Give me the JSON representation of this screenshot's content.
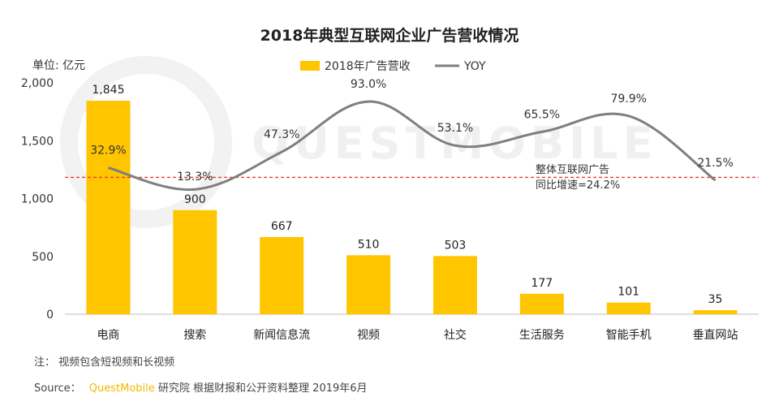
{
  "chart_data": {
    "type": "bar+line",
    "title": "2018年典型互联网企业广告营收情况",
    "unit_label": "单位: 亿元",
    "categories": [
      "电商",
      "搜索",
      "新闻信息流",
      "视频",
      "社交",
      "生活服务",
      "智能手机",
      "垂直网站"
    ],
    "series": [
      {
        "name": "2018年广告营收",
        "type": "bar",
        "axis": "left",
        "values": [
          1845,
          900,
          667,
          510,
          503,
          177,
          101,
          35
        ],
        "labels": [
          "1,845",
          "900",
          "667",
          "510",
          "503",
          "177",
          "101",
          "35"
        ]
      },
      {
        "name": "YOY",
        "type": "line",
        "axis": "right",
        "values": [
          32.9,
          13.3,
          47.3,
          93.0,
          53.1,
          65.5,
          79.9,
          21.5
        ],
        "labels": [
          "32.9%",
          "13.3%",
          "47.3%",
          "93.0%",
          "53.1%",
          "65.5%",
          "79.9%",
          "21.5%"
        ],
        "highlight_index": 3
      }
    ],
    "ylim": [
      0,
      2000
    ],
    "yticks": [
      0,
      500,
      1000,
      1500,
      2000
    ],
    "ytick_labels": [
      "0",
      "500",
      "1,000",
      "1,500",
      "2,000"
    ],
    "y2lim": [
      -100,
      110
    ],
    "reference_line": {
      "value": 24.2,
      "axis": "right",
      "style": "dashed",
      "label_lines": [
        "整体互联网广告",
        "同比增速=24.2%"
      ]
    },
    "legend_position": "top"
  },
  "colors": {
    "bar": "#FFC600",
    "line": "#7F7F7F",
    "ref_line": "#E0403A",
    "highlight": "#E0202A"
  },
  "footer": {
    "note": "注： 视频包含短视频和长视频",
    "source_prefix": "Source：",
    "source_brand": "QuestMobile",
    "source_rest": "研究院 根据财报和公开资料整理 2019年6月"
  },
  "watermark": "QUESTMOBILE"
}
